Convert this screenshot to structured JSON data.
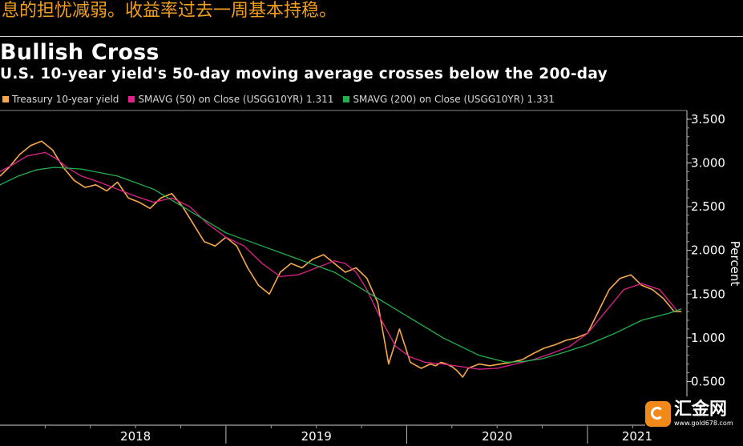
{
  "caption": "息的担忧减弱。收益率过去一周基本持稳。",
  "title": "Bullish Cross",
  "subtitle": "U.S. 10-year yield's 50-day moving average crosses below the 200-day",
  "legend": [
    {
      "label": "Treasury 10-year yield",
      "color": "#f7a84a"
    },
    {
      "label": "SMAVG (50)  on Close (USGG10YR) 1.311",
      "color": "#e0218a"
    },
    {
      "label": "SMAVG (200)  on Close (USGG10YR) 1.331",
      "color": "#22b14c"
    }
  ],
  "watermark": {
    "name": "汇金网",
    "url": "www.gold678.com"
  },
  "chart_data": {
    "type": "line",
    "title": "Bullish Cross",
    "subtitle": "U.S. 10-year yield's 50-day moving average crosses below the 200-day",
    "ylabel": "Percent",
    "ylim": [
      0.0,
      3.6
    ],
    "xlim": [
      2017.75,
      2021.55
    ],
    "yticks": [
      {
        "value": 0.5,
        "label": "0.500"
      },
      {
        "value": 1.0,
        "label": "1.000"
      },
      {
        "value": 1.5,
        "label": "1.500"
      },
      {
        "value": 2.0,
        "label": "2.000"
      },
      {
        "value": 2.5,
        "label": "2.500"
      },
      {
        "value": 3.0,
        "label": "3.000"
      },
      {
        "value": 3.5,
        "label": "3.500"
      }
    ],
    "xticks": [
      {
        "label": "2018",
        "value": 2018.0
      },
      {
        "label": "2019",
        "value": 2019.0
      },
      {
        "label": "2020",
        "value": 2020.0
      },
      {
        "label": "2021",
        "value": 2021.0
      }
    ],
    "grid": false,
    "series": [
      {
        "name": "Treasury 10-year yield",
        "color": "#f7a84a",
        "x": [
          2017.75,
          2017.8,
          2017.86,
          2017.92,
          2017.98,
          2018.04,
          2018.1,
          2018.16,
          2018.22,
          2018.28,
          2018.34,
          2018.4,
          2018.46,
          2018.52,
          2018.58,
          2018.64,
          2018.7,
          2018.76,
          2018.82,
          2018.88,
          2018.94,
          2019.0,
          2019.06,
          2019.12,
          2019.18,
          2019.24,
          2019.3,
          2019.36,
          2019.42,
          2019.48,
          2019.54,
          2019.6,
          2019.66,
          2019.72,
          2019.78,
          2019.84,
          2019.9,
          2019.96,
          2020.02,
          2020.08,
          2020.13,
          2020.16,
          2020.19,
          2020.22,
          2020.25,
          2020.28,
          2020.31,
          2020.34,
          2020.4,
          2020.46,
          2020.52,
          2020.58,
          2020.64,
          2020.7,
          2020.76,
          2020.82,
          2020.88,
          2020.94,
          2021.0,
          2021.06,
          2021.12,
          2021.18,
          2021.24,
          2021.3,
          2021.36,
          2021.42,
          2021.48,
          2021.52
        ],
        "values": [
          2.85,
          2.95,
          3.1,
          3.2,
          3.25,
          3.15,
          2.95,
          2.8,
          2.72,
          2.75,
          2.68,
          2.78,
          2.6,
          2.55,
          2.48,
          2.6,
          2.65,
          2.5,
          2.3,
          2.1,
          2.05,
          2.15,
          2.05,
          1.8,
          1.6,
          1.5,
          1.75,
          1.85,
          1.8,
          1.9,
          1.95,
          1.85,
          1.75,
          1.8,
          1.68,
          1.4,
          0.7,
          1.1,
          0.72,
          0.65,
          0.7,
          0.68,
          0.72,
          0.7,
          0.67,
          0.62,
          0.55,
          0.65,
          0.7,
          0.68,
          0.7,
          0.72,
          0.75,
          0.82,
          0.88,
          0.92,
          0.97,
          1.0,
          1.05,
          1.3,
          1.55,
          1.68,
          1.72,
          1.6,
          1.55,
          1.45,
          1.3,
          1.3
        ]
      },
      {
        "name": "SMAVG (50)",
        "color": "#e0218a",
        "x": [
          2017.75,
          2017.82,
          2017.9,
          2018.0,
          2018.06,
          2018.12,
          2018.2,
          2018.3,
          2018.4,
          2018.5,
          2018.6,
          2018.7,
          2018.8,
          2018.9,
          2019.0,
          2019.1,
          2019.2,
          2019.3,
          2019.4,
          2019.5,
          2019.6,
          2019.66,
          2019.72,
          2019.78,
          2019.86,
          2019.94,
          2020.02,
          2020.1,
          2020.2,
          2020.3,
          2020.4,
          2020.5,
          2020.6,
          2020.7,
          2020.8,
          2020.9,
          2021.0,
          2021.1,
          2021.2,
          2021.3,
          2021.4,
          2021.5
        ],
        "values": [
          2.9,
          2.98,
          3.08,
          3.12,
          3.05,
          2.95,
          2.85,
          2.78,
          2.7,
          2.62,
          2.55,
          2.6,
          2.5,
          2.3,
          2.15,
          2.05,
          1.85,
          1.7,
          1.72,
          1.8,
          1.88,
          1.85,
          1.75,
          1.55,
          1.2,
          0.9,
          0.78,
          0.72,
          0.7,
          0.67,
          0.64,
          0.65,
          0.7,
          0.75,
          0.82,
          0.9,
          1.05,
          1.3,
          1.55,
          1.62,
          1.55,
          1.3
        ]
      },
      {
        "name": "SMAVG (200)",
        "color": "#22b14c",
        "x": [
          2017.75,
          2017.85,
          2017.95,
          2018.05,
          2018.2,
          2018.4,
          2018.6,
          2018.8,
          2019.0,
          2019.2,
          2019.4,
          2019.6,
          2019.8,
          2020.0,
          2020.2,
          2020.4,
          2020.55,
          2020.65,
          2020.75,
          2020.85,
          2021.0,
          2021.15,
          2021.3,
          2021.45,
          2021.52
        ],
        "values": [
          2.75,
          2.85,
          2.92,
          2.95,
          2.93,
          2.85,
          2.7,
          2.45,
          2.2,
          2.05,
          1.9,
          1.75,
          1.5,
          1.25,
          1.0,
          0.8,
          0.72,
          0.73,
          0.76,
          0.82,
          0.92,
          1.05,
          1.2,
          1.28,
          1.33
        ]
      }
    ]
  }
}
